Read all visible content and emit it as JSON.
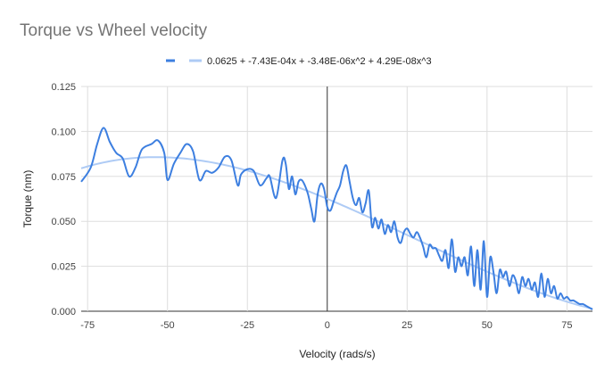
{
  "chart_data": {
    "type": "line",
    "title": "Torque vs Wheel velocity",
    "xlabel": "Velocity (rads/s)",
    "ylabel": "Torque (nm)",
    "xlim": [
      -77,
      83
    ],
    "ylim": [
      0,
      0.125
    ],
    "x_ticks": [
      -75,
      -50,
      -25,
      0,
      25,
      50,
      75
    ],
    "x_tick_labels": [
      "-75",
      "-50",
      "-25",
      "0",
      "25",
      "50",
      "75"
    ],
    "y_ticks": [
      0,
      0.025,
      0.05,
      0.075,
      0.1,
      0.125
    ],
    "y_tick_labels": [
      "0.000",
      "0.025",
      "0.050",
      "0.075",
      "0.100",
      "0.125"
    ],
    "grid": true,
    "legend_position": "top",
    "series": [
      {
        "name": "",
        "color": "#3d7fe0",
        "x": [
          -77,
          -74,
          -72,
          -70,
          -68,
          -66,
          -64,
          -62,
          -60,
          -58,
          -55,
          -53,
          -51,
          -50,
          -48,
          -46,
          -44,
          -42,
          -40,
          -38,
          -36,
          -34,
          -32,
          -30,
          -28,
          -27,
          -25,
          -23,
          -21,
          -19,
          -18,
          -16,
          -14,
          -13,
          -12,
          -11,
          -10,
          -9,
          -8,
          -7,
          -6,
          -5,
          -4,
          -3,
          -2,
          -1,
          0,
          1,
          2,
          3,
          4,
          5,
          6,
          7,
          8,
          9,
          10,
          11,
          12,
          13,
          14,
          15,
          16,
          17,
          18,
          19,
          20,
          21,
          22,
          23,
          24,
          25,
          26,
          27,
          28,
          29,
          30,
          31,
          32,
          33,
          34,
          35,
          36,
          37,
          38,
          39,
          40,
          41,
          42,
          43,
          44,
          45,
          46,
          47,
          48,
          49,
          50,
          51,
          52,
          53,
          54,
          55,
          56,
          57,
          58,
          59,
          60,
          61,
          62,
          63,
          64,
          65,
          66,
          67,
          68,
          69,
          70,
          71,
          72,
          73,
          74,
          75,
          76,
          77,
          78,
          79,
          80,
          81,
          82,
          83
        ],
        "y": [
          0.072,
          0.08,
          0.093,
          0.102,
          0.094,
          0.088,
          0.085,
          0.075,
          0.08,
          0.09,
          0.093,
          0.095,
          0.088,
          0.073,
          0.082,
          0.088,
          0.093,
          0.089,
          0.073,
          0.078,
          0.077,
          0.08,
          0.086,
          0.084,
          0.07,
          0.076,
          0.079,
          0.078,
          0.07,
          0.074,
          0.075,
          0.063,
          0.084,
          0.082,
          0.068,
          0.075,
          0.065,
          0.072,
          0.073,
          0.07,
          0.065,
          0.057,
          0.05,
          0.065,
          0.071,
          0.068,
          0.058,
          0.056,
          0.061,
          0.066,
          0.07,
          0.078,
          0.081,
          0.072,
          0.063,
          0.059,
          0.063,
          0.055,
          0.06,
          0.067,
          0.047,
          0.052,
          0.046,
          0.051,
          0.043,
          0.048,
          0.044,
          0.05,
          0.041,
          0.038,
          0.044,
          0.046,
          0.043,
          0.041,
          0.044,
          0.041,
          0.036,
          0.03,
          0.037,
          0.035,
          0.035,
          0.031,
          0.028,
          0.034,
          0.024,
          0.04,
          0.022,
          0.03,
          0.025,
          0.03,
          0.02,
          0.036,
          0.014,
          0.034,
          0.012,
          0.039,
          0.008,
          0.03,
          0.022,
          0.01,
          0.023,
          0.019,
          0.022,
          0.014,
          0.02,
          0.017,
          0.01,
          0.019,
          0.014,
          0.018,
          0.012,
          0.016,
          0.008,
          0.021,
          0.008,
          0.018,
          0.01,
          0.014,
          0.007,
          0.01,
          0.007,
          0.008,
          0.006,
          0.006,
          0.005,
          0.004,
          0.004,
          0.003,
          0.002,
          0.001
        ]
      },
      {
        "name": "0.0625 + -7.43E-04x + -3.48E-06x^2 + 4.29E-08x^3",
        "color": "#aecbf5",
        "trendline": {
          "coefficients": [
            0.0625,
            -0.000743,
            -3.48e-06,
            4.29e-08
          ],
          "x_range": [
            -77,
            83
          ]
        }
      }
    ]
  }
}
